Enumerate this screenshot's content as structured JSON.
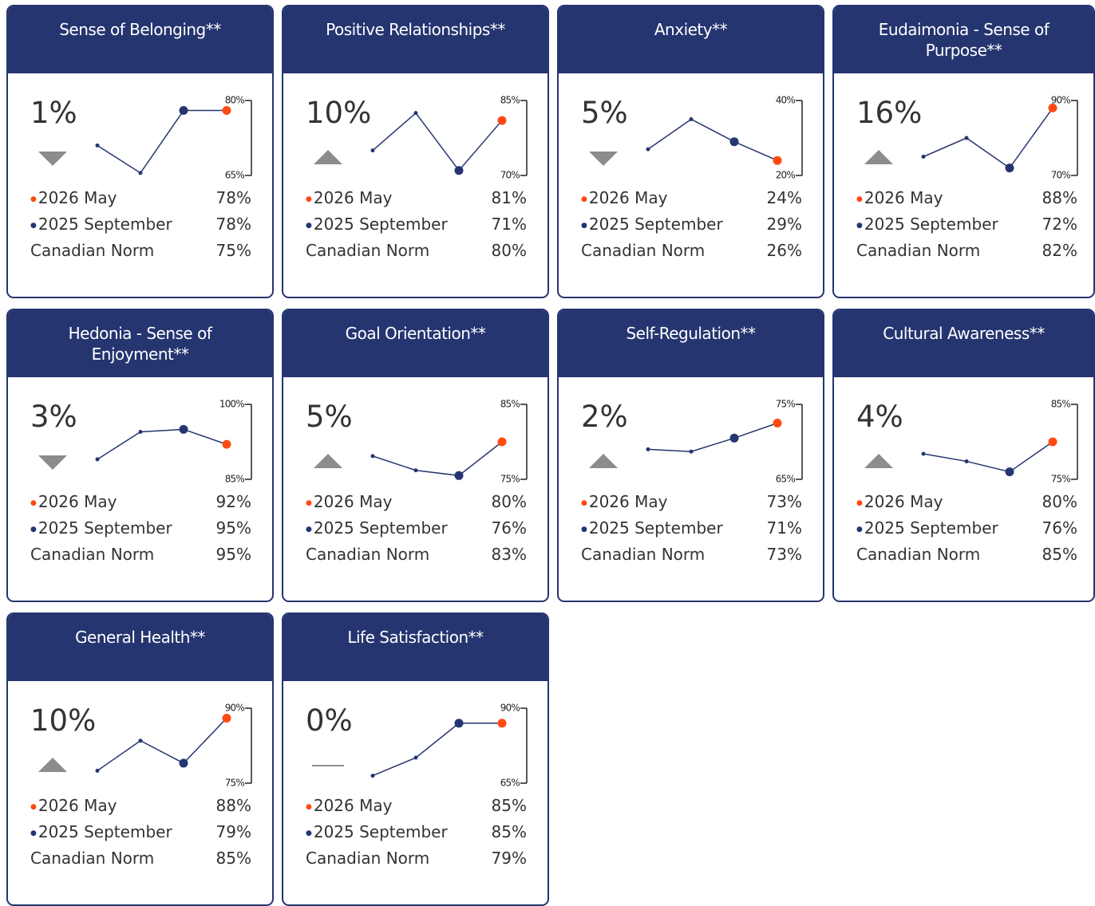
{
  "colors": {
    "current": "#ff4a12",
    "previous": "#253570"
  },
  "cards": [
    {
      "title": "Sense of Belonging**",
      "change": "1%",
      "direction": "down",
      "ylim": [
        65,
        80
      ],
      "yticks": [
        {
          "value": 65,
          "label": "65%"
        },
        {
          "value": 80,
          "label": "80%"
        }
      ],
      "trend": [
        71,
        65.5,
        78,
        78
      ],
      "rows": [
        {
          "label": "2026 May",
          "value": "78%"
        },
        {
          "label": "2025 September",
          "value": "78%"
        },
        {
          "label": "Canadian Norm",
          "value": "75%"
        }
      ]
    },
    {
      "title": "Positive Relationships**",
      "change": "10%",
      "direction": "up",
      "ylim": [
        70,
        85
      ],
      "yticks": [
        {
          "value": 70,
          "label": "70%"
        },
        {
          "value": 85,
          "label": "85%"
        }
      ],
      "trend": [
        75,
        82.5,
        71,
        81
      ],
      "rows": [
        {
          "label": "2026 May",
          "value": "81%"
        },
        {
          "label": "2025 September",
          "value": "71%"
        },
        {
          "label": "Canadian Norm",
          "value": "80%"
        }
      ]
    },
    {
      "title": "Anxiety**",
      "change": "5%",
      "direction": "down",
      "ylim": [
        20,
        40
      ],
      "yticks": [
        {
          "value": 20,
          "label": "20%"
        },
        {
          "value": 40,
          "label": "40%"
        }
      ],
      "trend": [
        27,
        35,
        29,
        24
      ],
      "rows": [
        {
          "label": "2026 May",
          "value": "24%"
        },
        {
          "label": "2025 September",
          "value": "29%"
        },
        {
          "label": "Canadian Norm",
          "value": "26%"
        }
      ]
    },
    {
      "title": "Eudaimonia - Sense of Purpose**",
      "change": "16%",
      "direction": "up",
      "ylim": [
        70,
        90
      ],
      "yticks": [
        {
          "value": 70,
          "label": "70%"
        },
        {
          "value": 90,
          "label": "90%"
        }
      ],
      "trend": [
        75,
        80,
        72,
        88
      ],
      "rows": [
        {
          "label": "2026 May",
          "value": "88%"
        },
        {
          "label": "2025 September",
          "value": "72%"
        },
        {
          "label": "Canadian Norm",
          "value": "82%"
        }
      ]
    },
    {
      "title": "Hedonia - Sense of Enjoyment**",
      "change": "3%",
      "direction": "down",
      "ylim": [
        85,
        100
      ],
      "yticks": [
        {
          "value": 85,
          "label": "85%"
        },
        {
          "value": 100,
          "label": "100%"
        }
      ],
      "trend": [
        89,
        94.5,
        95,
        92
      ],
      "rows": [
        {
          "label": "2026 May",
          "value": "92%"
        },
        {
          "label": "2025 September",
          "value": "95%"
        },
        {
          "label": "Canadian Norm",
          "value": "95%"
        }
      ]
    },
    {
      "title": "Goal Orientation**",
      "change": "5%",
      "direction": "up",
      "ylim": [
        75,
        85
      ],
      "yticks": [
        {
          "value": 75,
          "label": "75%"
        },
        {
          "value": 85,
          "label": "85%"
        }
      ],
      "trend": [
        78.1,
        76.2,
        75.5,
        80
      ],
      "rows": [
        {
          "label": "2026 May",
          "value": "80%"
        },
        {
          "label": "2025 September",
          "value": "76%"
        },
        {
          "label": "Canadian Norm",
          "value": "83%"
        }
      ]
    },
    {
      "title": "Self-Regulation**",
      "change": "2%",
      "direction": "up",
      "ylim": [
        65,
        75
      ],
      "yticks": [
        {
          "value": 65,
          "label": "65%"
        },
        {
          "value": 75,
          "label": "75%"
        }
      ],
      "trend": [
        69,
        68.7,
        70.5,
        72.5
      ],
      "rows": [
        {
          "label": "2026 May",
          "value": "73%"
        },
        {
          "label": "2025 September",
          "value": "71%"
        },
        {
          "label": "Canadian Norm",
          "value": "73%"
        }
      ]
    },
    {
      "title": "Cultural Awareness**",
      "change": "4%",
      "direction": "up",
      "ylim": [
        75,
        85
      ],
      "yticks": [
        {
          "value": 75,
          "label": "75%"
        },
        {
          "value": 85,
          "label": "85%"
        }
      ],
      "trend": [
        78.4,
        77.4,
        76,
        80
      ],
      "rows": [
        {
          "label": "2026 May",
          "value": "80%"
        },
        {
          "label": "2025 September",
          "value": "76%"
        },
        {
          "label": "Canadian Norm",
          "value": "85%"
        }
      ]
    },
    {
      "title": "General Health**",
      "change": "10%",
      "direction": "up",
      "ylim": [
        75,
        90
      ],
      "yticks": [
        {
          "value": 75,
          "label": "75%"
        },
        {
          "value": 90,
          "label": "90%"
        }
      ],
      "trend": [
        77.5,
        83.5,
        79,
        88
      ],
      "rows": [
        {
          "label": "2026 May",
          "value": "88%"
        },
        {
          "label": "2025 September",
          "value": "79%"
        },
        {
          "label": "Canadian Norm",
          "value": "85%"
        }
      ]
    },
    {
      "title": "Life Satisfaction**",
      "change": "0%",
      "direction": "flat",
      "ylim": [
        65,
        90
      ],
      "yticks": [
        {
          "value": 65,
          "label": "65%"
        },
        {
          "value": 90,
          "label": "90%"
        }
      ],
      "trend": [
        67.5,
        73.5,
        85,
        85
      ],
      "rows": [
        {
          "label": "2026 May",
          "value": "85%"
        },
        {
          "label": "2025 September",
          "value": "85%"
        },
        {
          "label": "Canadian Norm",
          "value": "79%"
        }
      ]
    }
  ]
}
